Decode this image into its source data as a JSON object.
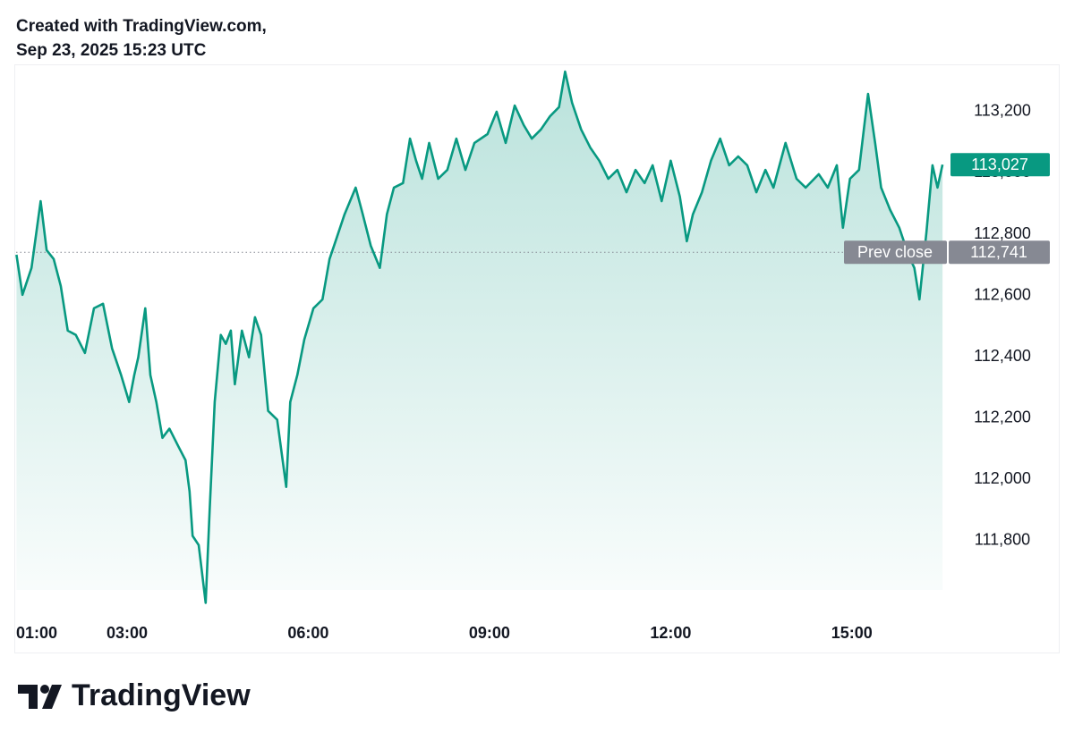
{
  "header": {
    "line1": "Created with TradingView.com,",
    "line2": "Sep 23, 2025 15:23 UTC"
  },
  "footer": {
    "brand": "TradingView"
  },
  "chart_data": {
    "type": "line",
    "color": "#089981",
    "x": [
      "01:03",
      "01:09",
      "01:18",
      "01:27",
      "01:33",
      "01:40",
      "01:47",
      "01:54",
      "02:02",
      "02:11",
      "02:20",
      "02:29",
      "02:38",
      "02:47",
      "02:55",
      "03:00",
      "03:04",
      "03:11",
      "03:16",
      "03:22",
      "03:28",
      "03:35",
      "03:44",
      "03:51",
      "03:55",
      "03:58",
      "04:04",
      "04:11",
      "04:15",
      "04:20",
      "04:26",
      "04:31",
      "04:36",
      "04:40",
      "04:47",
      "04:54",
      "05:00",
      "05:06",
      "05:13",
      "05:22",
      "05:31",
      "05:35",
      "05:42",
      "05:49",
      "05:58",
      "06:07",
      "06:14",
      "06:20",
      "06:29",
      "06:40",
      "06:47",
      "06:55",
      "07:04",
      "07:11",
      "07:18",
      "07:27",
      "07:34",
      "07:40",
      "07:46",
      "07:53",
      "08:02",
      "08:11",
      "08:20",
      "08:29",
      "08:38",
      "08:51",
      "09:00",
      "09:09",
      "09:18",
      "09:27",
      "09:35",
      "09:44",
      "09:53",
      "10:02",
      "10:08",
      "10:15",
      "10:24",
      "10:33",
      "10:42",
      "10:51",
      "11:00",
      "11:09",
      "11:18",
      "11:27",
      "11:35",
      "11:44",
      "11:53",
      "12:02",
      "12:09",
      "12:15",
      "12:24",
      "12:33",
      "12:42",
      "12:51",
      "13:00",
      "13:09",
      "13:18",
      "13:27",
      "13:35",
      "13:47",
      "13:58",
      "14:07",
      "14:20",
      "14:29",
      "14:38",
      "14:44",
      "14:51",
      "15:00",
      "15:09",
      "15:16",
      "15:22",
      "15:31",
      "15:40",
      "15:49",
      "15:55",
      "16:00",
      "16:07",
      "16:13",
      "16:18",
      "16:23"
    ],
    "values": [
      112733,
      112602,
      112690,
      112908,
      112748,
      112719,
      112631,
      112485,
      112471,
      112412,
      112558,
      112573,
      112427,
      112340,
      112252,
      112340,
      112398,
      112558,
      112340,
      112252,
      112135,
      112165,
      112106,
      112062,
      111960,
      111815,
      111785,
      111596,
      111902,
      112252,
      112471,
      112442,
      112485,
      112310,
      112485,
      112398,
      112529,
      112471,
      112223,
      112194,
      111975,
      112252,
      112340,
      112456,
      112558,
      112587,
      112719,
      112777,
      112865,
      112952,
      112865,
      112762,
      112690,
      112865,
      112952,
      112967,
      113112,
      113040,
      112981,
      113098,
      112981,
      113010,
      113112,
      113010,
      113098,
      113127,
      113200,
      113098,
      113220,
      113156,
      113112,
      113142,
      113185,
      113215,
      113331,
      113229,
      113142,
      113083,
      113040,
      112981,
      113010,
      112937,
      113010,
      112967,
      113025,
      112908,
      113040,
      112923,
      112777,
      112865,
      112937,
      113040,
      113112,
      113025,
      113054,
      113025,
      112937,
      113010,
      112952,
      113098,
      112981,
      112952,
      112996,
      112952,
      113025,
      112821,
      112981,
      113010,
      113258,
      113098,
      112952,
      112879,
      112821,
      112733,
      112690,
      112587,
      112806,
      113025,
      112952,
      113027
    ],
    "xlim": [
      "01:00",
      "16:30"
    ],
    "xticks": [
      "01:00",
      "03:00",
      "06:00",
      "09:00",
      "12:00",
      "15:00"
    ],
    "ylim": [
      111580,
      113340
    ],
    "yticks": [
      {
        "value": 111800,
        "label": "111,800"
      },
      {
        "value": 112000,
        "label": "112,000"
      },
      {
        "value": 112200,
        "label": "112,200"
      },
      {
        "value": 112400,
        "label": "112,400"
      },
      {
        "value": 112600,
        "label": "112,600"
      },
      {
        "value": 112800,
        "label": "112,800"
      },
      {
        "value": 113000,
        "label": "113,000"
      },
      {
        "value": 113200,
        "label": "113,200"
      }
    ],
    "last_price": {
      "value": 113027,
      "value_label": "113,027",
      "color": "#089981"
    },
    "prev_close": {
      "name": "Prev close",
      "value": 112741,
      "value_label": "112,741",
      "color": "#868993"
    }
  }
}
